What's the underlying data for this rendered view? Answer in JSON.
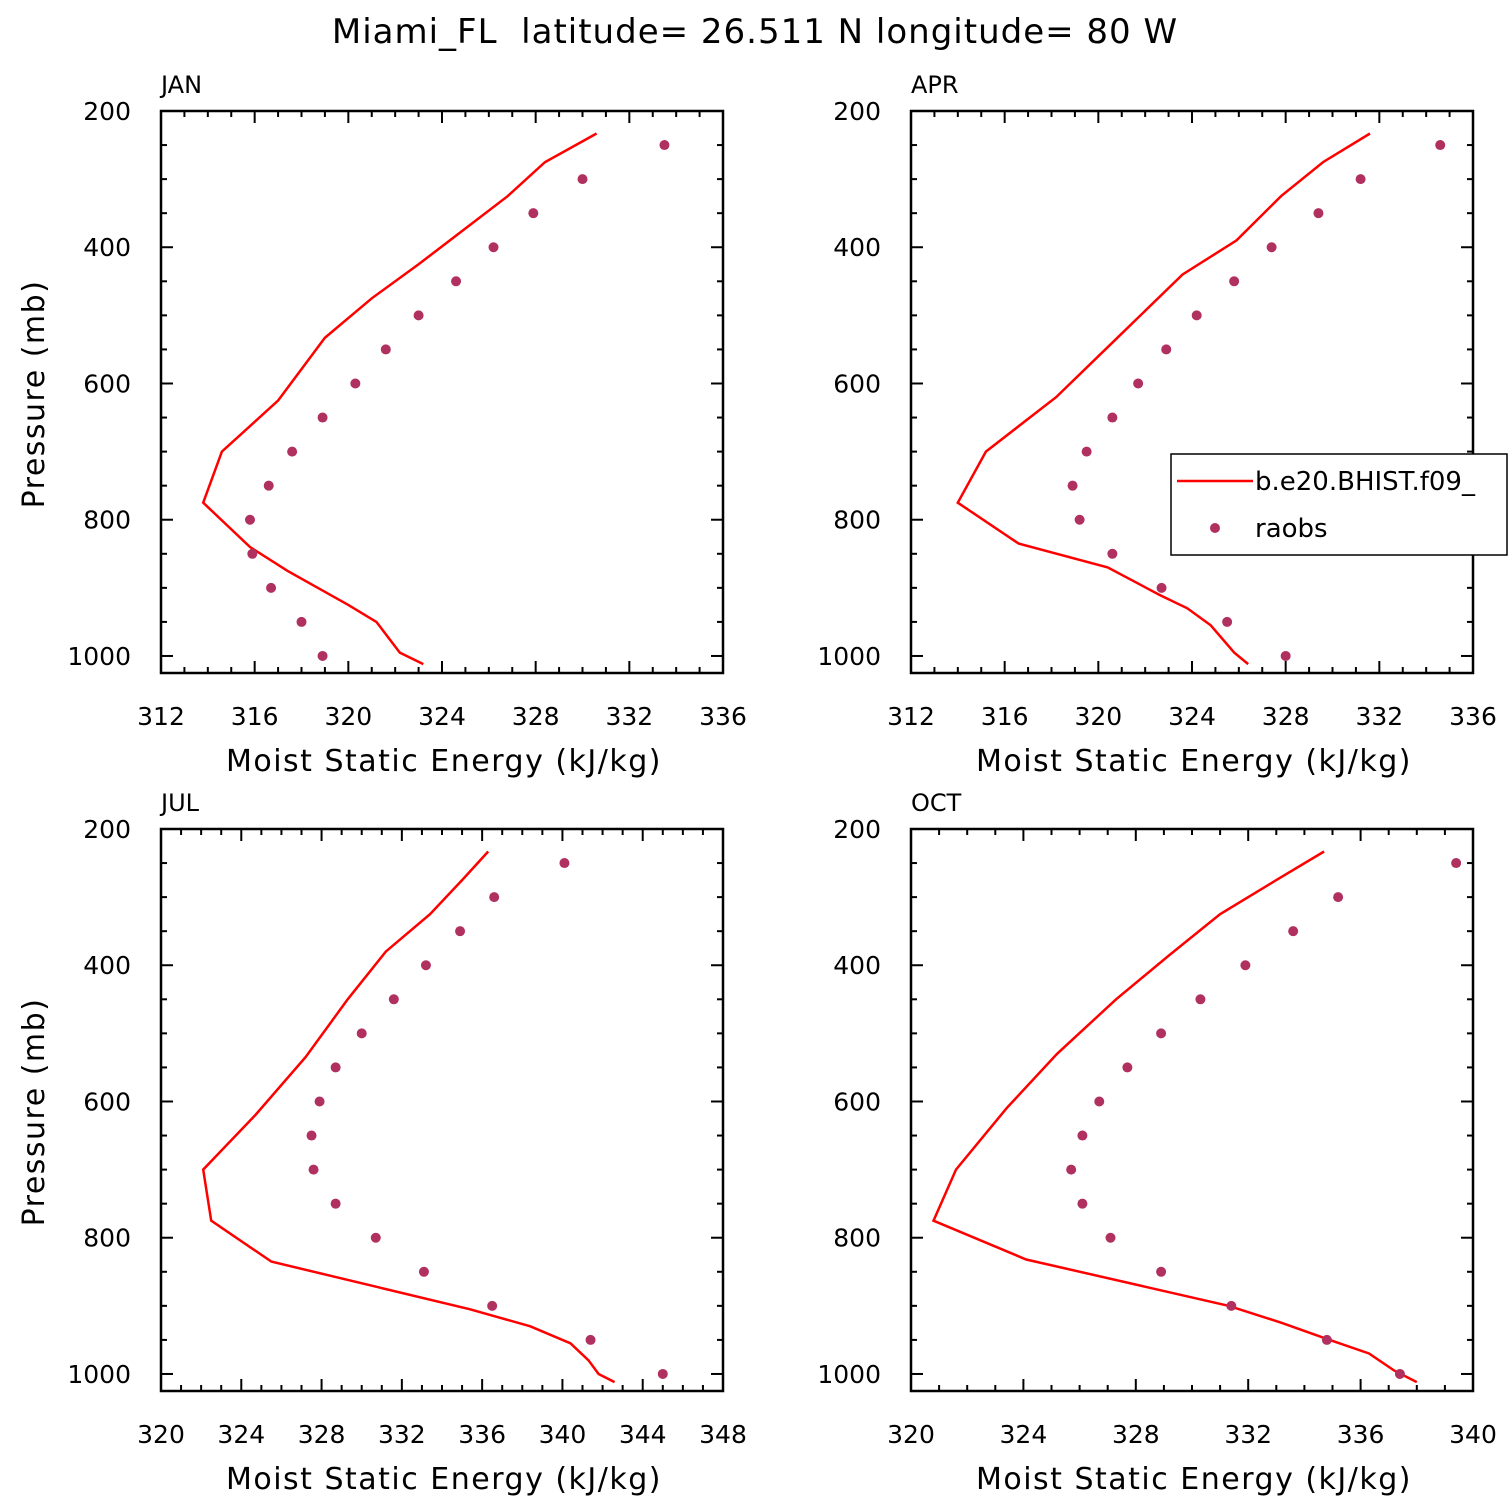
{
  "title": "Miami_FL  latitude= 26.511 N longitude= 80 W",
  "legend": {
    "model_label": "b.e20.BHIST.f09_",
    "obs_label": "raobs",
    "model_color": "#ff0000",
    "obs_color": "#b03060"
  },
  "chart_data": [
    {
      "type": "line",
      "label": "JAN",
      "xlabel": "Moist Static Energy (kJ/kg)",
      "ylabel": "Pressure (mb)",
      "xlim": [
        312,
        336
      ],
      "ylim": [
        1025,
        200
      ],
      "xticks": [
        312,
        316,
        320,
        324,
        328,
        332,
        336
      ],
      "yticks": [
        200,
        400,
        600,
        800,
        1000
      ],
      "model": {
        "x": [
          330.6,
          328.4,
          326.8,
          324.9,
          323.0,
          321.0,
          319.0,
          317.0,
          314.6,
          313.8,
          315.8,
          317.4,
          320.0,
          321.2,
          322.2,
          323.2
        ],
        "y": [
          233,
          275,
          325,
          375,
          425,
          475,
          533,
          625,
          700,
          775,
          840,
          875,
          925,
          950,
          995,
          1012
        ]
      },
      "obs": {
        "x": [
          333.5,
          330.0,
          327.9,
          326.2,
          324.6,
          323.0,
          321.6,
          320.3,
          318.9,
          317.6,
          316.6,
          315.8,
          315.9,
          316.7,
          318.0,
          318.9
        ],
        "y": [
          250,
          300,
          350,
          400,
          450,
          500,
          550,
          600,
          650,
          700,
          750,
          800,
          850,
          900,
          950,
          1000
        ]
      }
    },
    {
      "type": "line",
      "label": "APR",
      "xlabel": "Moist Static Energy (kJ/kg)",
      "ylabel": "",
      "xlim": [
        312,
        336
      ],
      "ylim": [
        1025,
        200
      ],
      "xticks": [
        312,
        316,
        320,
        324,
        328,
        332,
        336
      ],
      "yticks": [
        200,
        400,
        600,
        800,
        1000
      ],
      "model": {
        "x": [
          331.6,
          329.6,
          327.8,
          325.9,
          323.6,
          320.9,
          318.2,
          315.2,
          314.0,
          316.6,
          320.4,
          322.6,
          323.8,
          324.8,
          325.8,
          326.4
        ],
        "y": [
          233,
          275,
          325,
          390,
          440,
          530,
          620,
          700,
          775,
          835,
          870,
          910,
          930,
          955,
          995,
          1012
        ]
      },
      "obs": {
        "x": [
          334.6,
          331.2,
          329.4,
          327.4,
          325.8,
          324.2,
          322.9,
          321.7,
          320.6,
          319.5,
          318.9,
          319.2,
          320.6,
          322.7,
          325.5,
          328.0
        ],
        "y": [
          250,
          300,
          350,
          400,
          450,
          500,
          550,
          600,
          650,
          700,
          750,
          800,
          850,
          900,
          950,
          1000
        ]
      }
    },
    {
      "type": "line",
      "label": "JUL",
      "xlabel": "Moist Static Energy (kJ/kg)",
      "ylabel": "Pressure (mb)",
      "xlim": [
        320,
        348
      ],
      "ylim": [
        1025,
        200
      ],
      "xticks": [
        320,
        324,
        328,
        332,
        336,
        340,
        344,
        348
      ],
      "yticks": [
        200,
        400,
        600,
        800,
        1000
      ],
      "model": {
        "x": [
          336.3,
          335.0,
          333.4,
          331.2,
          329.3,
          327.2,
          324.7,
          322.1,
          322.5,
          325.5,
          335.4,
          338.4,
          340.4,
          341.3,
          341.8,
          342.6
        ],
        "y": [
          233,
          275,
          325,
          380,
          450,
          535,
          620,
          700,
          775,
          835,
          905,
          930,
          955,
          980,
          1000,
          1012
        ]
      },
      "obs": {
        "x": [
          340.1,
          336.6,
          334.9,
          333.2,
          331.6,
          330.0,
          328.7,
          327.9,
          327.5,
          327.6,
          328.7,
          330.7,
          333.1,
          336.5,
          341.4,
          345.0
        ],
        "y": [
          250,
          300,
          350,
          400,
          450,
          500,
          550,
          600,
          650,
          700,
          750,
          800,
          850,
          900,
          950,
          1000
        ]
      }
    },
    {
      "type": "line",
      "label": "OCT",
      "xlabel": "Moist Static Energy (kJ/kg)",
      "ylabel": "",
      "xlim": [
        320,
        340
      ],
      "ylim": [
        1025,
        200
      ],
      "xticks": [
        320,
        324,
        328,
        332,
        336,
        340
      ],
      "yticks": [
        200,
        400,
        600,
        800,
        1000
      ],
      "model": {
        "x": [
          334.7,
          333.0,
          331.0,
          329.2,
          327.3,
          325.2,
          323.4,
          321.6,
          320.8,
          324.1,
          331.3,
          333.2,
          334.9,
          336.3,
          337.2,
          338.0
        ],
        "y": [
          233,
          275,
          325,
          385,
          450,
          530,
          610,
          700,
          775,
          832,
          900,
          925,
          950,
          970,
          995,
          1012
        ]
      },
      "obs": {
        "x": [
          339.4,
          335.2,
          333.6,
          331.9,
          330.3,
          328.9,
          327.7,
          326.7,
          326.1,
          325.7,
          326.1,
          327.1,
          328.9,
          331.4,
          334.8,
          337.4
        ],
        "y": [
          250,
          300,
          350,
          400,
          450,
          500,
          550,
          600,
          650,
          700,
          750,
          800,
          850,
          900,
          950,
          1000
        ]
      }
    }
  ]
}
